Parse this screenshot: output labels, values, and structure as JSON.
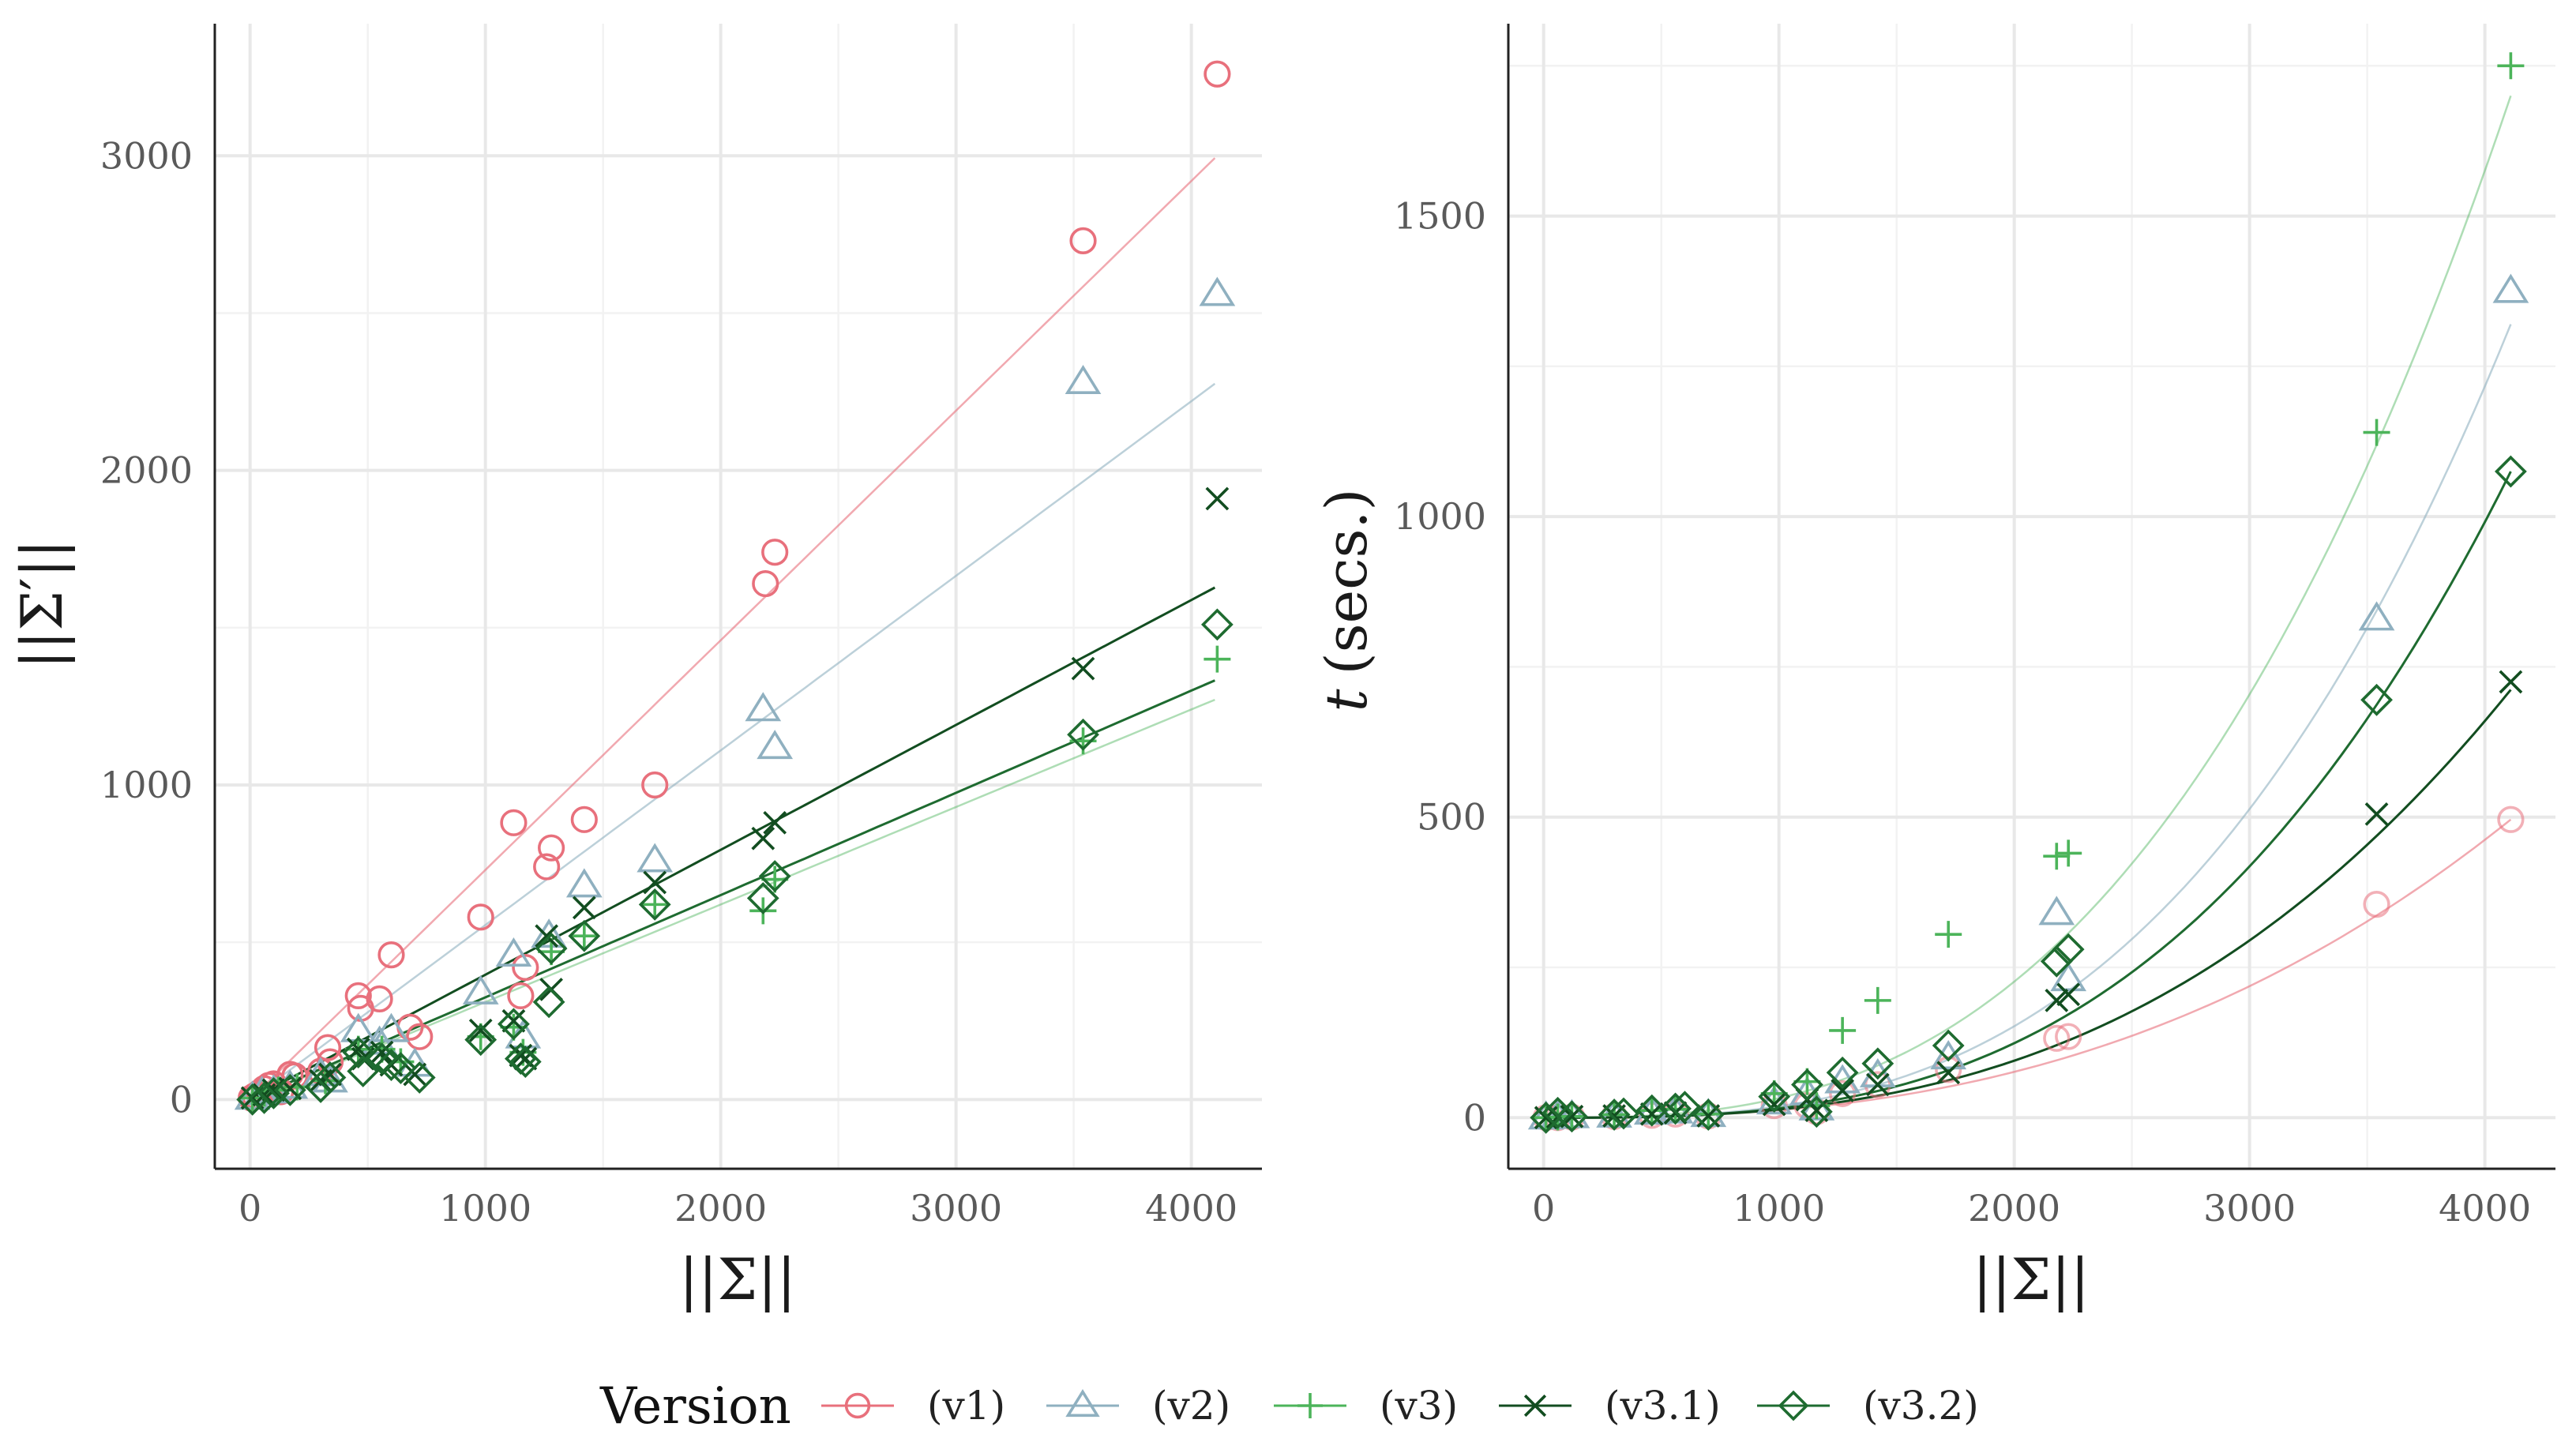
{
  "legend": {
    "title": "Version",
    "entries": [
      {
        "key": "v1",
        "label": "(v1)",
        "color": "#e8707c",
        "shape": "circle-icon"
      },
      {
        "key": "v2",
        "label": "(v2)",
        "color": "#8fb0c0",
        "shape": "triangle-icon"
      },
      {
        "key": "v3",
        "label": "(v3)",
        "color": "#4cb45a",
        "shape": "plus-icon"
      },
      {
        "key": "v31",
        "label": "(v3.1)",
        "color": "#124d20",
        "shape": "cross-icon"
      },
      {
        "key": "v32",
        "label": "(v3.2)",
        "color": "#1e6b30",
        "shape": "diamond-icon"
      }
    ]
  },
  "chart_data": [
    {
      "type": "scatter",
      "xlabel": "||Σ||",
      "ylabel": "||Σ′||",
      "xlim": [
        -150,
        4300
      ],
      "ylim": [
        -220,
        3420
      ],
      "xticks": [
        0,
        1000,
        2000,
        3000,
        4000
      ],
      "yticks": [
        0,
        1000,
        2000,
        3000
      ],
      "grid": true,
      "fits": {
        "v1": {
          "type": "linear",
          "slope": 0.73,
          "intercept": 0
        },
        "v2": {
          "type": "linear",
          "slope": 0.555,
          "intercept": 0
        },
        "v3": {
          "type": "linear",
          "slope": 0.31,
          "intercept": 0
        },
        "v31": {
          "type": "linear",
          "slope": 0.397,
          "intercept": 0
        },
        "v32": {
          "type": "linear",
          "slope": 0.325,
          "intercept": 0
        }
      },
      "fit_range": [
        0,
        4100
      ],
      "series": [
        {
          "name": "v1",
          "points": [
            [
              5,
              5
            ],
            [
              20,
              12
            ],
            [
              40,
              22
            ],
            [
              60,
              35
            ],
            [
              80,
              45
            ],
            [
              100,
              50
            ],
            [
              130,
              25
            ],
            [
              170,
              80
            ],
            [
              190,
              75
            ],
            [
              300,
              90
            ],
            [
              330,
              165
            ],
            [
              340,
              120
            ],
            [
              460,
              330
            ],
            [
              470,
              290
            ],
            [
              550,
              320
            ],
            [
              600,
              460
            ],
            [
              680,
              230
            ],
            [
              720,
              200
            ],
            [
              980,
              580
            ],
            [
              1120,
              880
            ],
            [
              1150,
              330
            ],
            [
              1170,
              420
            ],
            [
              1260,
              740
            ],
            [
              1280,
              800
            ],
            [
              1420,
              890
            ],
            [
              1720,
              1000
            ],
            [
              2190,
              1640
            ],
            [
              2230,
              1740
            ],
            [
              3540,
              2730
            ],
            [
              4110,
              3260
            ]
          ]
        },
        {
          "name": "v2",
          "points": [
            [
              10,
              5
            ],
            [
              50,
              20
            ],
            [
              100,
              25
            ],
            [
              170,
              40
            ],
            [
              300,
              80
            ],
            [
              340,
              60
            ],
            [
              460,
              220
            ],
            [
              550,
              180
            ],
            [
              600,
              220
            ],
            [
              700,
              110
            ],
            [
              980,
              340
            ],
            [
              1120,
              460
            ],
            [
              1160,
              200
            ],
            [
              1270,
              520
            ],
            [
              1420,
              680
            ],
            [
              1720,
              760
            ],
            [
              2180,
              1240
            ],
            [
              2230,
              1120
            ],
            [
              3540,
              2280
            ],
            [
              4110,
              2560
            ]
          ]
        },
        {
          "name": "v3",
          "points": [
            [
              10,
              5
            ],
            [
              60,
              20
            ],
            [
              120,
              30
            ],
            [
              200,
              40
            ],
            [
              320,
              60
            ],
            [
              460,
              160
            ],
            [
              560,
              160
            ],
            [
              640,
              120
            ],
            [
              980,
              200
            ],
            [
              1120,
              230
            ],
            [
              1160,
              150
            ],
            [
              1280,
              470
            ],
            [
              1420,
              520
            ],
            [
              1720,
              620
            ],
            [
              2180,
              600
            ],
            [
              2230,
              700
            ],
            [
              3540,
              1140
            ],
            [
              4110,
              1400
            ]
          ]
        },
        {
          "name": "v31",
          "points": [
            [
              10,
              5
            ],
            [
              60,
              15
            ],
            [
              100,
              30
            ],
            [
              170,
              35
            ],
            [
              300,
              60
            ],
            [
              340,
              80
            ],
            [
              460,
              160
            ],
            [
              480,
              130
            ],
            [
              560,
              150
            ],
            [
              600,
              110
            ],
            [
              700,
              80
            ],
            [
              980,
              220
            ],
            [
              1120,
              250
            ],
            [
              1150,
              140
            ],
            [
              1170,
              130
            ],
            [
              1260,
              520
            ],
            [
              1280,
              350
            ],
            [
              1420,
              610
            ],
            [
              1720,
              690
            ],
            [
              2180,
              830
            ],
            [
              2230,
              880
            ],
            [
              3540,
              1370
            ],
            [
              4110,
              1910
            ]
          ]
        },
        {
          "name": "v32",
          "points": [
            [
              10,
              0
            ],
            [
              60,
              5
            ],
            [
              100,
              20
            ],
            [
              170,
              30
            ],
            [
              300,
              40
            ],
            [
              340,
              70
            ],
            [
              460,
              150
            ],
            [
              480,
              90
            ],
            [
              560,
              130
            ],
            [
              600,
              110
            ],
            [
              640,
              100
            ],
            [
              720,
              70
            ],
            [
              980,
              190
            ],
            [
              1120,
              240
            ],
            [
              1150,
              130
            ],
            [
              1170,
              120
            ],
            [
              1270,
              310
            ],
            [
              1280,
              480
            ],
            [
              1420,
              520
            ],
            [
              1720,
              620
            ],
            [
              2180,
              640
            ],
            [
              2230,
              710
            ],
            [
              3540,
              1160
            ],
            [
              4110,
              1510
            ]
          ]
        }
      ]
    },
    {
      "type": "scatter",
      "xlabel": "||Σ||",
      "ylabel_var": "t",
      "ylabel_rest": "(secs.)",
      "xlim": [
        -150,
        4300
      ],
      "ylim": [
        -85,
        1820
      ],
      "xticks": [
        0,
        1000,
        2000,
        3000,
        4000
      ],
      "yticks": [
        0,
        500,
        1000,
        1500
      ],
      "grid": true,
      "fits": {
        "v1": {
          "type": "power",
          "coef": 496,
          "exp": 2.6
        },
        "v2": {
          "type": "power",
          "coef": 1320,
          "exp": 3.0
        },
        "v3": {
          "type": "power",
          "coef": 1700,
          "exp": 2.8
        },
        "v31": {
          "type": "power",
          "coef": 712,
          "exp": 2.8
        },
        "v32": {
          "type": "power",
          "coef": 1075,
          "exp": 3.0
        }
      },
      "fit_range": [
        0,
        4110
      ],
      "series": [
        {
          "name": "v1",
          "points": [
            [
              10,
              0
            ],
            [
              60,
              0
            ],
            [
              120,
              1
            ],
            [
              300,
              2
            ],
            [
              460,
              4
            ],
            [
              560,
              6
            ],
            [
              700,
              3
            ],
            [
              980,
              20
            ],
            [
              1120,
              20
            ],
            [
              1160,
              10
            ],
            [
              1270,
              40
            ],
            [
              1420,
              55
            ],
            [
              1720,
              80
            ],
            [
              2180,
              132
            ],
            [
              2230,
              135
            ],
            [
              3540,
              355
            ],
            [
              4110,
              496
            ]
          ]
        },
        {
          "name": "v2",
          "points": [
            [
              10,
              0
            ],
            [
              60,
              1
            ],
            [
              120,
              2
            ],
            [
              300,
              3
            ],
            [
              460,
              8
            ],
            [
              560,
              10
            ],
            [
              700,
              4
            ],
            [
              980,
              25
            ],
            [
              1120,
              40
            ],
            [
              1160,
              15
            ],
            [
              1270,
              60
            ],
            [
              1420,
              70
            ],
            [
              1720,
              100
            ],
            [
              2180,
              340
            ],
            [
              2230,
              230
            ],
            [
              3540,
              830
            ],
            [
              4110,
              1375
            ]
          ]
        },
        {
          "name": "v3",
          "points": [
            [
              10,
              0
            ],
            [
              60,
              1
            ],
            [
              120,
              2
            ],
            [
              300,
              5
            ],
            [
              460,
              12
            ],
            [
              560,
              14
            ],
            [
              700,
              6
            ],
            [
              980,
              40
            ],
            [
              1120,
              60
            ],
            [
              1160,
              20
            ],
            [
              1270,
              145
            ],
            [
              1420,
              195
            ],
            [
              1720,
              305
            ],
            [
              2180,
              435
            ],
            [
              2230,
              440
            ],
            [
              3540,
              1140
            ],
            [
              4110,
              1750
            ]
          ]
        },
        {
          "name": "v31",
          "points": [
            [
              10,
              0
            ],
            [
              60,
              1
            ],
            [
              120,
              2
            ],
            [
              300,
              3
            ],
            [
              460,
              6
            ],
            [
              560,
              8
            ],
            [
              700,
              3
            ],
            [
              980,
              22
            ],
            [
              1120,
              30
            ],
            [
              1160,
              12
            ],
            [
              1270,
              45
            ],
            [
              1420,
              55
            ],
            [
              1720,
              75
            ],
            [
              2180,
              195
            ],
            [
              2230,
              205
            ],
            [
              3540,
              505
            ],
            [
              4110,
              725
            ]
          ]
        },
        {
          "name": "v32",
          "points": [
            [
              10,
              0
            ],
            [
              60,
              8
            ],
            [
              120,
              2
            ],
            [
              300,
              5
            ],
            [
              340,
              7
            ],
            [
              460,
              12
            ],
            [
              560,
              15
            ],
            [
              600,
              18
            ],
            [
              700,
              5
            ],
            [
              980,
              35
            ],
            [
              1120,
              55
            ],
            [
              1160,
              10
            ],
            [
              1270,
              75
            ],
            [
              1420,
              90
            ],
            [
              1720,
              120
            ],
            [
              2180,
              260
            ],
            [
              2230,
              280
            ],
            [
              3540,
              695
            ],
            [
              4110,
              1075
            ]
          ]
        }
      ]
    }
  ]
}
